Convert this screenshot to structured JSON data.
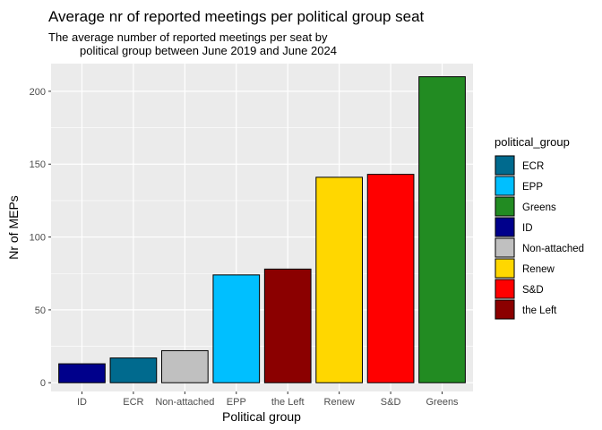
{
  "chart_data": {
    "type": "bar",
    "title": "Average nr of reported meetings per political group seat",
    "subtitle_lines": [
      "The average number of reported meetings per seat by",
      "political group between June 2019 and June 2024"
    ],
    "xlabel": "Political group",
    "ylabel": "Nr of MEPs",
    "categories": [
      "ID",
      "ECR",
      "Non-attached",
      "EPP",
      "the Left",
      "Renew",
      "S&D",
      "Greens"
    ],
    "values": [
      13,
      17,
      22,
      74,
      78,
      141,
      143,
      210
    ],
    "colors": [
      "#00008b",
      "#006a8e",
      "#c0c0c0",
      "#00bfff",
      "#8b0000",
      "#ffd700",
      "#ff0000",
      "#228b22"
    ],
    "ylim": [
      -6,
      219
    ],
    "yticks": [
      0,
      50,
      100,
      150,
      200
    ],
    "grid": true,
    "legend": {
      "title": "political_group",
      "placement": "right",
      "items": [
        {
          "label": "ECR",
          "color": "#006a8e"
        },
        {
          "label": "EPP",
          "color": "#00bfff"
        },
        {
          "label": "Greens",
          "color": "#228b22"
        },
        {
          "label": "ID",
          "color": "#00008b"
        },
        {
          "label": "Non-attached",
          "color": "#c0c0c0"
        },
        {
          "label": "Renew",
          "color": "#ffd700"
        },
        {
          "label": "S&D",
          "color": "#ff0000"
        },
        {
          "label": "the Left",
          "color": "#8b0000"
        }
      ]
    }
  }
}
